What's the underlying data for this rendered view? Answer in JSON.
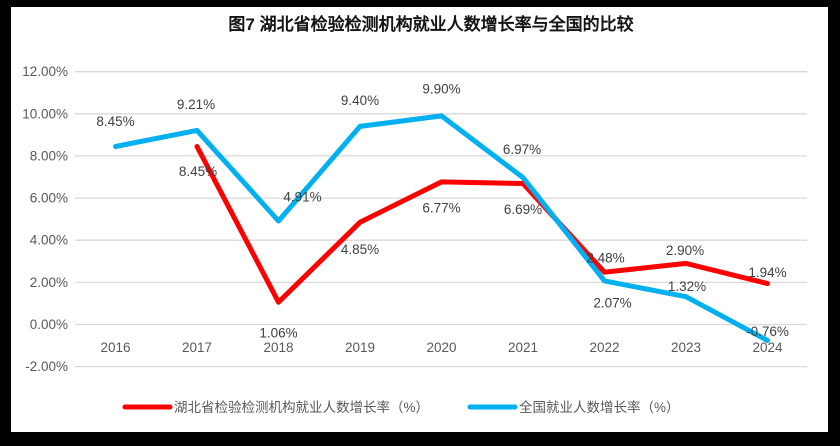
{
  "frame_color": "#000000",
  "background_color": "#FFFFFF",
  "chart_data": {
    "type": "line",
    "title": "图7 湖北省检验检测机构就业人数增长率与全国的比较",
    "categories": [
      "2016",
      "2017",
      "2018",
      "2019",
      "2020",
      "2021",
      "2022",
      "2023",
      "2024"
    ],
    "series": [
      {
        "name": "湖北省检验检测机构就业人数增长率（%）",
        "color": "#FF0000",
        "values": [
          null,
          8.45,
          1.06,
          4.85,
          6.77,
          6.69,
          2.48,
          2.9,
          1.94
        ],
        "labels": [
          "",
          "8.45%",
          "1.06%",
          "4.85%",
          "6.77%",
          "6.69%",
          "2.48%",
          "2.90%",
          "1.94%"
        ],
        "label_offsets": [
          [
            0,
            0
          ],
          [
            1,
            25
          ],
          [
            0,
            31
          ],
          [
            0,
            27
          ],
          [
            0,
            26
          ],
          [
            0,
            26
          ],
          [
            1,
            -14
          ],
          [
            -1,
            -13
          ],
          [
            0,
            -11
          ]
        ]
      },
      {
        "name": "全国就业人数增长率（%）",
        "color": "#00B0F0",
        "values": [
          8.45,
          9.21,
          4.91,
          9.4,
          9.9,
          6.97,
          2.07,
          1.32,
          -0.76
        ],
        "labels": [
          "8.45%",
          "9.21%",
          "4.91%",
          "9.40%",
          "9.90%",
          "6.97%",
          "2.07%",
          "1.32%",
          "-0.76%"
        ],
        "label_offsets": [
          [
            0,
            -25
          ],
          [
            -1,
            -26
          ],
          [
            24,
            -24
          ],
          [
            0,
            -26
          ],
          [
            0,
            -27
          ],
          [
            -1,
            -28
          ],
          [
            8,
            22
          ],
          [
            1,
            -10
          ],
          [
            0,
            -9
          ]
        ]
      }
    ],
    "ylim": [
      -2,
      12
    ],
    "ytick_step": 2,
    "ytick_labels": [
      "12.00%",
      "10.00%",
      "8.00%",
      "6.00%",
      "4.00%",
      "2.00%",
      "0.00%",
      "-2.00%"
    ],
    "grid": true,
    "legend_position": "bottom",
    "line_width": 5,
    "colors": {
      "gridline": "#D9D9D9",
      "axis_text": "#595959",
      "label_text": "#3F3F3F",
      "title_text": "#141414"
    }
  }
}
